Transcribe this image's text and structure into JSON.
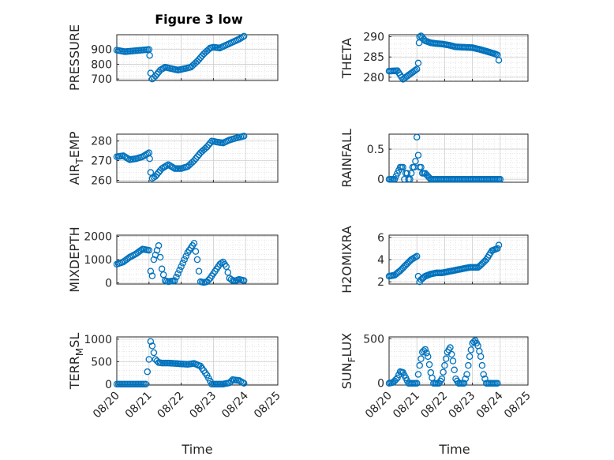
{
  "figure": {
    "title": "Figure 3 low",
    "marker_color": "#0072BD",
    "grid": "on",
    "date_ticks": [
      "08/20",
      "08/21",
      "08/22",
      "08/23",
      "08/24",
      "08/25"
    ],
    "time_label": "Time"
  },
  "chart_data": [
    {
      "type": "scatter",
      "name": "pressure",
      "ylabel": "PRESSURE",
      "ylabel_sub": "",
      "ylabel_suffix": "",
      "xlim": [
        0,
        5
      ],
      "ylim": [
        690,
        1000
      ],
      "yticks": [
        700,
        800,
        900
      ],
      "ytick_labels": [
        "700",
        "800",
        "900"
      ],
      "x": [
        0,
        0.25,
        0.5,
        0.75,
        1,
        1.02,
        1.05,
        1.1,
        1.2,
        1.35,
        1.5,
        1.7,
        1.9,
        2.1,
        2.3,
        2.5,
        2.7,
        2.9,
        3.0,
        3.2,
        3.4,
        3.6,
        3.8,
        3.95
      ],
      "y": [
        895,
        885,
        890,
        895,
        900,
        860,
        740,
        700,
        720,
        760,
        780,
        770,
        760,
        770,
        780,
        820,
        870,
        910,
        915,
        910,
        930,
        950,
        970,
        990
      ]
    },
    {
      "type": "scatter",
      "name": "theta",
      "ylabel": "THETA",
      "ylabel_sub": "",
      "ylabel_suffix": "",
      "xlim": [
        0,
        5
      ],
      "ylim": [
        279,
        290.5
      ],
      "yticks": [
        280,
        285,
        290
      ],
      "ytick_labels": [
        "280",
        "285",
        "290"
      ],
      "x": [
        0,
        0.3,
        0.5,
        0.6,
        0.8,
        1.0,
        1.05,
        1.08,
        1.1,
        1.15,
        1.3,
        1.5,
        1.7,
        1.9,
        2.1,
        2.4,
        2.7,
        3.0,
        3.3,
        3.6,
        3.8,
        3.9,
        3.95
      ],
      "y": [
        281.5,
        281.6,
        279.5,
        280,
        281,
        282,
        283.5,
        288.5,
        290,
        290.2,
        289,
        288.5,
        288.3,
        288.2,
        288,
        287.5,
        287.4,
        287.3,
        286.8,
        286.2,
        285.8,
        285.5,
        284.2
      ]
    },
    {
      "type": "scatter",
      "name": "air_temp",
      "ylabel": "AIR",
      "ylabel_sub": "T",
      "ylabel_suffix": "EMP",
      "xlim": [
        0,
        5
      ],
      "ylim": [
        259,
        283.5
      ],
      "yticks": [
        260,
        270,
        280
      ],
      "ytick_labels": [
        "260",
        "270",
        "280"
      ],
      "x": [
        0,
        0.2,
        0.4,
        0.6,
        0.8,
        1.0,
        1.02,
        1.05,
        1.1,
        1.2,
        1.4,
        1.6,
        1.8,
        2.0,
        2.2,
        2.4,
        2.6,
        2.8,
        2.95,
        3.1,
        3.3,
        3.5,
        3.7,
        3.95
      ],
      "y": [
        272,
        272.5,
        270.5,
        271,
        272,
        274,
        271,
        264,
        261,
        262,
        266,
        268,
        266,
        266,
        267,
        270,
        274,
        277,
        280,
        279.5,
        279,
        280.5,
        281.5,
        282.5
      ]
    },
    {
      "type": "scatter",
      "name": "rainfall",
      "ylabel": "RAINFALL",
      "ylabel_sub": "",
      "ylabel_suffix": "",
      "xlim": [
        0,
        5
      ],
      "ylim": [
        -0.05,
        0.75
      ],
      "yticks": [
        0,
        0.5
      ],
      "ytick_labels": [
        "0",
        "0.5"
      ],
      "x": [
        0,
        0.2,
        0.4,
        0.45,
        0.5,
        0.55,
        0.6,
        0.65,
        0.7,
        0.75,
        0.8,
        0.85,
        0.9,
        0.95,
        1.0,
        1.05,
        1.1,
        1.15,
        1.2,
        1.3,
        1.5,
        2.0,
        2.5,
        3.0,
        3.5,
        4.0
      ],
      "y": [
        0,
        0,
        0.2,
        0.2,
        0.2,
        0,
        0.1,
        0.1,
        0,
        0,
        0.1,
        0.2,
        0.2,
        0.3,
        0.7,
        0.4,
        0.2,
        0.2,
        0.1,
        0.1,
        0,
        0,
        0,
        0,
        0,
        0
      ]
    },
    {
      "type": "scatter",
      "name": "mixdepth",
      "ylabel": "MIXDEPTH",
      "ylabel_sub": "",
      "ylabel_suffix": "",
      "xlim": [
        0,
        5
      ],
      "ylim": [
        -50,
        2050
      ],
      "yticks": [
        0,
        1000,
        2000
      ],
      "ytick_labels": [
        "0",
        "1000",
        "2000"
      ],
      "x": [
        0,
        0.2,
        0.4,
        0.6,
        0.8,
        1.0,
        1.05,
        1.1,
        1.15,
        1.2,
        1.3,
        1.4,
        1.5,
        1.6,
        1.8,
        1.9,
        2.0,
        2.1,
        2.2,
        2.3,
        2.4,
        2.5,
        2.55,
        2.6,
        2.7,
        2.8,
        2.9,
        3.0,
        3.1,
        3.2,
        3.3,
        3.4,
        3.5,
        3.6,
        3.7,
        3.8,
        3.95
      ],
      "y": [
        800,
        900,
        1100,
        1250,
        1450,
        1400,
        500,
        300,
        1000,
        1200,
        1600,
        600,
        100,
        50,
        100,
        400,
        700,
        1000,
        1300,
        1500,
        1700,
        1000,
        500,
        50,
        20,
        50,
        200,
        400,
        600,
        800,
        900,
        700,
        200,
        100,
        100,
        150,
        100
      ]
    },
    {
      "type": "scatter",
      "name": "h2omixra",
      "ylabel": "H2OMIXRA",
      "ylabel_sub": "",
      "ylabel_suffix": "",
      "xlim": [
        0,
        5
      ],
      "ylim": [
        1.8,
        6.2
      ],
      "yticks": [
        2,
        4,
        6
      ],
      "ytick_labels": [
        "2",
        "4",
        "6"
      ],
      "x": [
        0,
        0.2,
        0.4,
        0.6,
        0.8,
        1.0,
        1.05,
        1.1,
        1.15,
        1.3,
        1.5,
        1.7,
        1.9,
        2.1,
        2.3,
        2.5,
        2.7,
        2.9,
        3.0,
        3.1,
        3.2,
        3.3,
        3.5,
        3.7,
        3.9,
        3.95
      ],
      "y": [
        2.5,
        2.6,
        3,
        3.5,
        4,
        4.3,
        2.5,
        2,
        2.2,
        2.5,
        2.7,
        2.8,
        2.8,
        2.9,
        3,
        3.1,
        3.2,
        3.3,
        3.3,
        3.3,
        3.3,
        3.5,
        4,
        4.8,
        5,
        5.3
      ]
    },
    {
      "type": "scatter",
      "name": "terr_msl",
      "ylabel": "TERR",
      "ylabel_sub": "M",
      "ylabel_suffix": "SL",
      "xlim": [
        0,
        5
      ],
      "ylim": [
        -20,
        1050
      ],
      "yticks": [
        0,
        500,
        1000
      ],
      "ytick_labels": [
        "0",
        "500",
        "1000"
      ],
      "x": [
        0,
        0.3,
        0.6,
        0.9,
        1.0,
        1.05,
        1.1,
        1.15,
        1.2,
        1.3,
        1.4,
        1.6,
        1.8,
        2.0,
        2.2,
        2.4,
        2.6,
        2.8,
        2.95,
        3.1,
        3.3,
        3.5,
        3.6,
        3.8,
        3.95
      ],
      "y": [
        0,
        0,
        0,
        0,
        550,
        950,
        850,
        700,
        550,
        480,
        470,
        470,
        460,
        450,
        440,
        460,
        400,
        200,
        0,
        0,
        0,
        30,
        100,
        80,
        20
      ]
    },
    {
      "type": "scatter",
      "name": "sun_flux",
      "ylabel": "SUN",
      "ylabel_sub": "F",
      "ylabel_suffix": "LUX",
      "xlim": [
        0,
        5
      ],
      "ylim": [
        -20,
        520
      ],
      "yticks": [
        0,
        500
      ],
      "ytick_labels": [
        "0",
        "500"
      ],
      "x": [
        0,
        0.15,
        0.3,
        0.4,
        0.5,
        0.6,
        0.7,
        0.8,
        0.9,
        1.0,
        1.1,
        1.2,
        1.3,
        1.4,
        1.5,
        1.6,
        1.7,
        1.8,
        1.9,
        2.0,
        2.1,
        2.2,
        2.3,
        2.4,
        2.5,
        2.6,
        2.7,
        2.8,
        2.9,
        3.0,
        3.1,
        3.2,
        3.3,
        3.4,
        3.5,
        3.6,
        3.7,
        3.8,
        3.9
      ],
      "y": [
        0,
        10,
        60,
        130,
        120,
        60,
        0,
        0,
        0,
        0,
        200,
        350,
        380,
        300,
        120,
        0,
        0,
        0,
        50,
        200,
        350,
        400,
        250,
        50,
        0,
        0,
        0,
        100,
        300,
        450,
        480,
        420,
        300,
        100,
        0,
        0,
        0,
        0,
        0
      ]
    }
  ]
}
